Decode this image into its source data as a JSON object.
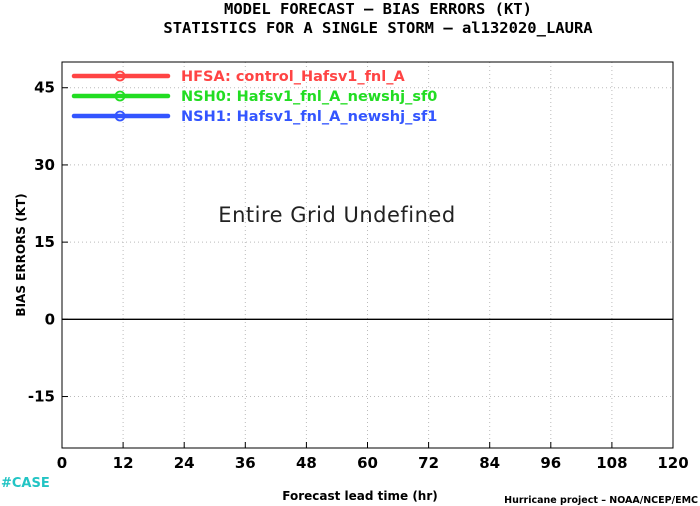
{
  "chart_data": {
    "type": "line",
    "title": "MODEL FORECAST – BIAS ERRORS (KT)",
    "subtitle": "STATISTICS FOR A SINGLE STORM – al132020_LAURA",
    "xlabel": "Forecast lead time (hr)",
    "ylabel": "BIAS ERRORS (KT)",
    "x_ticks": [
      0,
      12,
      24,
      36,
      48,
      60,
      72,
      84,
      96,
      108,
      120
    ],
    "y_ticks": [
      45,
      30,
      15,
      0,
      -15
    ],
    "xlim": [
      0,
      120
    ],
    "ylim": [
      -25,
      50
    ],
    "grid": true,
    "reference_line_y": 0,
    "annotation": "Entire Grid Undefined",
    "legend_position": "top-left",
    "series": [
      {
        "name": "HFSA: control_Hafsv1_fnl_A",
        "color": "#ff4444",
        "values": []
      },
      {
        "name": "NSH0: Hafsv1_fnl_A_newshj_sf0",
        "color": "#22dd22",
        "values": []
      },
      {
        "name": "NSH1: Hafsv1_fnl_A_newshj_sf1",
        "color": "#3355ff",
        "values": []
      }
    ]
  },
  "footer": {
    "case_label": "#CASE",
    "case_color": "#22c4c4",
    "credit": "Hurricane project – NOAA/NCEP/EMC"
  }
}
